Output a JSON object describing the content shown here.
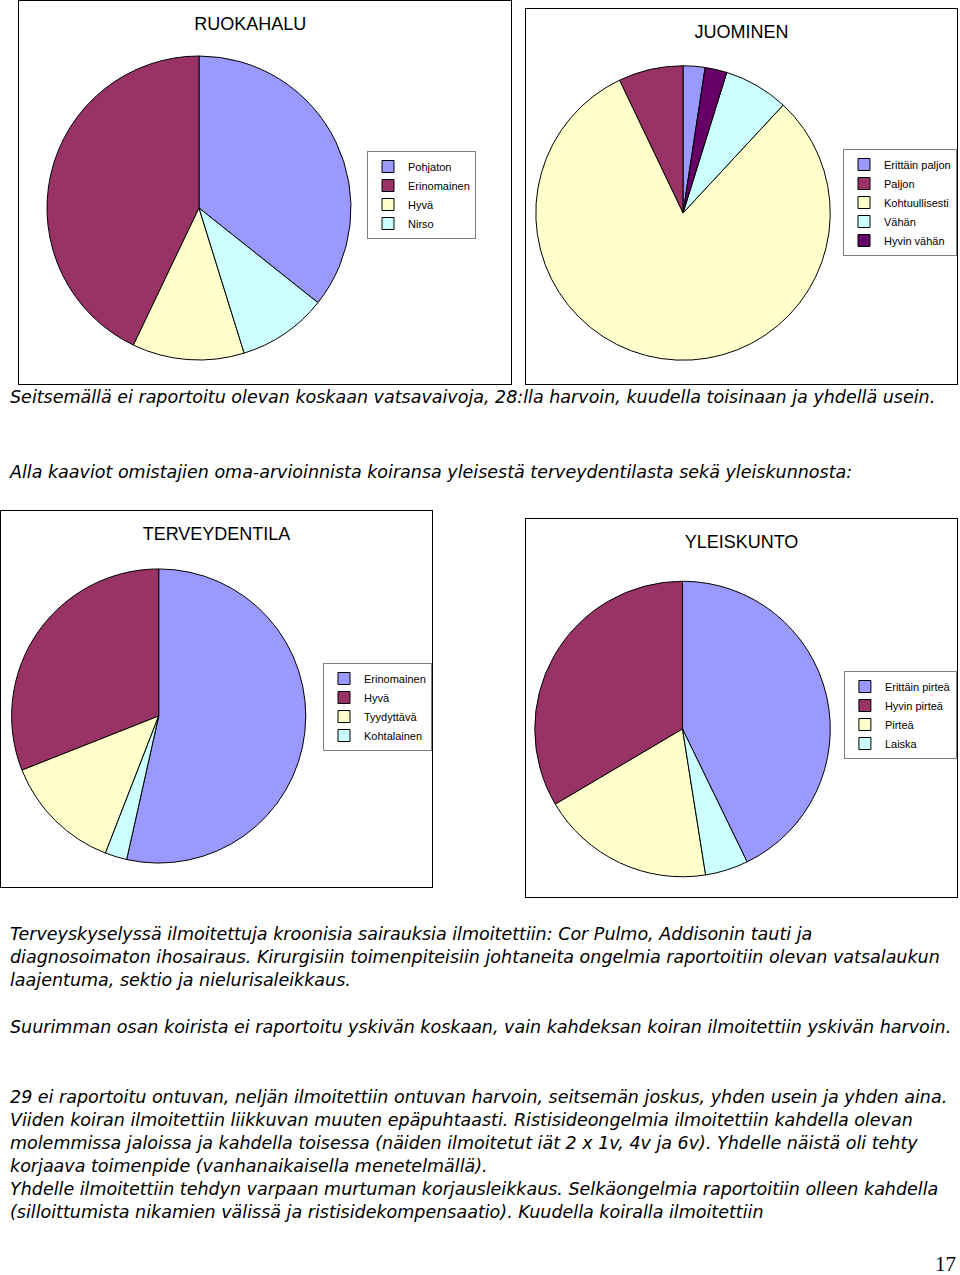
{
  "chart_data": [
    {
      "type": "pie",
      "title": "RUOKAHALU",
      "categories": [
        "Pohjaton",
        "Erinomainen",
        "Hyvä",
        "Nirso"
      ],
      "values": [
        35.7,
        42.9,
        11.9,
        9.5
      ],
      "colors": [
        "#9999ff",
        "#993366",
        "#ffffcc",
        "#ccffff"
      ],
      "legend": "right",
      "data_labels": false
    },
    {
      "type": "pie",
      "title": "JUOMINEN",
      "categories": [
        "Erittäin paljon",
        "Paljon",
        "Kohtuullisesti",
        "Vähän",
        "Hyvin vähän"
      ],
      "values": [
        2.4,
        7.1,
        81.0,
        7.1,
        2.4
      ],
      "colors": [
        "#9999ff",
        "#993366",
        "#ffffcc",
        "#ccffff",
        "#660066"
      ],
      "legend": "right",
      "data_labels": false
    },
    {
      "type": "pie",
      "title": "TERVEYDENTILA",
      "categories": [
        "Erinomainen",
        "Hyvä",
        "Tyydyttävä",
        "Kohtalainen"
      ],
      "values": [
        53.5,
        31.0,
        13.1,
        2.4
      ],
      "colors": [
        "#9999ff",
        "#993366",
        "#ffffcc",
        "#ccffff"
      ],
      "legend": "right",
      "data_labels": false
    },
    {
      "type": "pie",
      "title": "YLEISKUNTO",
      "categories": [
        "Erittäin pirteä",
        "Hyvin pirteä",
        "Pirteä",
        "Laiska"
      ],
      "values": [
        42.8,
        33.5,
        19.0,
        4.7
      ],
      "colors": [
        "#9999ff",
        "#993366",
        "#ffffcc",
        "#ccffff"
      ],
      "legend": "right",
      "data_labels": false
    }
  ],
  "document": {
    "paragraphs": [
      [
        "Seitsemällä ei raportoitu olevan koskaan vatsavaivoja, 28:lla harvoin, kuudella toisinaan ja yhdellä usein."
      ],
      [
        "Alla kaaviot omistajien oma-arvioinnista koiransa yleisestä terveydentilasta sekä yleiskunnosta:"
      ],
      [
        "Terveyskyselyssä ilmoitettuja kroonisia sairauksia ilmoitettiin: Cor Pulmo, Addisonin tauti ja diagnosoimaton ihosairaus. Kirurgisiin toimenpiteisiin johtaneita ongelmia raportoitiin olevan vatsalaukun laajentuma, sektio ja nielurisaleikkaus."
      ],
      [
        "Suurimman osan koirista ei raportoitu yskivän koskaan, vain kahdeksan koiran ilmoitettiin yskivän harvoin."
      ],
      [
        "29 ei raportoitu ontuvan, neljän ilmoitettiin ontuvan harvoin, seitsemän joskus, yhden usein ja yhden aina. Viiden koiran ilmoitettiin liikkuvan muuten epäpuhtaasti. Ristisideongelmia ilmoitettiin kahdella olevan molemmissa jaloissa ja kahdella toisessa (näiden ilmoitetut iät 2 x 1v, 4v ja 6v). Yhdelle näistä oli tehty korjaava toimenpide (vanhanaikaisella menetelmällä).",
        "Yhdelle ilmoitettiin tehdyn varpaan murtuman korjausleikkaus. Selkäongelmia raportoitiin olleen kahdella (silloittumista nikamien välissä ja ristisidekompensaatio). Kuudella koiralla ilmoitettiin"
      ]
    ],
    "page_number": "17"
  }
}
